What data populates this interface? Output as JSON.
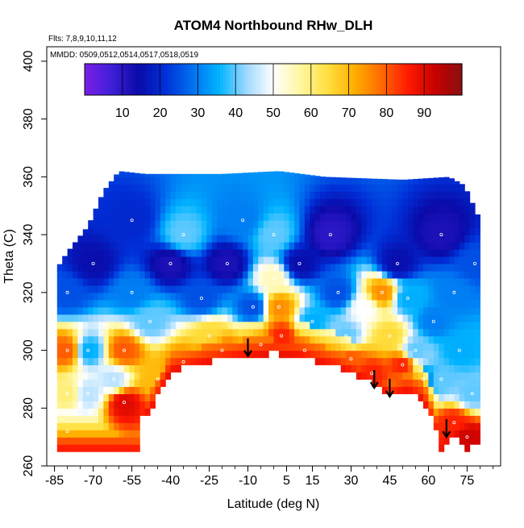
{
  "chart_data": {
    "type": "heatmap",
    "title": "ATOM4 Northbound RHw_DLH",
    "subtitle_flights": "Flts: 7,8,9,10,11,12",
    "subtitle_dates": "MMDD: 0509,0512,0514,0517,0518,0519",
    "xlabel": "Latitude (deg N)",
    "ylabel": "Theta (C)",
    "xlim": [
      -88,
      88
    ],
    "ylim": [
      260,
      405
    ],
    "x_ticks": [
      -85,
      -70,
      -55,
      -40,
      -25,
      -10,
      5,
      15,
      30,
      45,
      60,
      75
    ],
    "y_ticks": [
      260,
      280,
      300,
      320,
      340,
      360,
      380,
      400
    ],
    "colorbar": {
      "range": [
        0,
        100
      ],
      "ticks": [
        10,
        20,
        30,
        40,
        50,
        60,
        70,
        80,
        90
      ],
      "colors": [
        "#7a1fe6",
        "#3f1fd8",
        "#0a0aa8",
        "#0030d8",
        "#0070f0",
        "#00b4ff",
        "#9fd8ff",
        "#ffffff",
        "#fff7a0",
        "#ffe040",
        "#ffb000",
        "#ff6a00",
        "#ff1a00",
        "#c80000",
        "#8a1010"
      ]
    },
    "boundary_top": [
      {
        "lat": -85,
        "theta": 327
      },
      {
        "lat": -80,
        "theta": 334
      },
      {
        "lat": -72,
        "theta": 343
      },
      {
        "lat": -66,
        "theta": 355
      },
      {
        "lat": -60,
        "theta": 362
      },
      {
        "lat": -50,
        "theta": 361
      },
      {
        "lat": -20,
        "theta": 361
      },
      {
        "lat": 2,
        "theta": 362
      },
      {
        "lat": 20,
        "theta": 360
      },
      {
        "lat": 50,
        "theta": 359
      },
      {
        "lat": 68,
        "theta": 360
      },
      {
        "lat": 74,
        "theta": 357
      },
      {
        "lat": 79,
        "theta": 347
      },
      {
        "lat": 80,
        "theta": 340
      }
    ],
    "boundary_bottom": [
      {
        "lat": -84,
        "theta": 306
      },
      {
        "lat": -84,
        "theta": 265
      },
      {
        "lat": -53,
        "theta": 265
      },
      {
        "lat": -53,
        "theta": 276
      },
      {
        "lat": -48,
        "theta": 279
      },
      {
        "lat": -40,
        "theta": 293
      },
      {
        "lat": -25,
        "theta": 296
      },
      {
        "lat": -10,
        "theta": 298
      },
      {
        "lat": 0,
        "theta": 299
      },
      {
        "lat": 10,
        "theta": 298
      },
      {
        "lat": 25,
        "theta": 294
      },
      {
        "lat": 38,
        "theta": 289
      },
      {
        "lat": 45,
        "theta": 284
      },
      {
        "lat": 52,
        "theta": 286
      },
      {
        "lat": 58,
        "theta": 283
      },
      {
        "lat": 63,
        "theta": 272
      },
      {
        "lat": 65,
        "theta": 266
      },
      {
        "lat": 70,
        "theta": 271
      },
      {
        "lat": 75,
        "theta": 266
      },
      {
        "lat": 80,
        "theta": 268
      }
    ],
    "rh_samples": [
      {
        "lat": -80,
        "theta": 300,
        "rh": 80
      },
      {
        "lat": -80,
        "theta": 285,
        "rh": 60
      },
      {
        "lat": -80,
        "theta": 272,
        "rh": 40
      },
      {
        "lat": -80,
        "theta": 320,
        "rh": 25
      },
      {
        "lat": -72,
        "theta": 300,
        "rh": 35
      },
      {
        "lat": -72,
        "theta": 285,
        "rh": 45
      },
      {
        "lat": -70,
        "theta": 330,
        "rh": 15
      },
      {
        "lat": -62,
        "theta": 290,
        "rh": 45
      },
      {
        "lat": -58,
        "theta": 282,
        "rh": 90
      },
      {
        "lat": -58,
        "theta": 300,
        "rh": 80
      },
      {
        "lat": -55,
        "theta": 345,
        "rh": 20
      },
      {
        "lat": -55,
        "theta": 320,
        "rh": 30
      },
      {
        "lat": -48,
        "theta": 310,
        "rh": 40
      },
      {
        "lat": -45,
        "theta": 290,
        "rh": 70
      },
      {
        "lat": -40,
        "theta": 330,
        "rh": 12
      },
      {
        "lat": -35,
        "theta": 340,
        "rh": 40
      },
      {
        "lat": -35,
        "theta": 296,
        "rh": 75
      },
      {
        "lat": -28,
        "theta": 318,
        "rh": 25
      },
      {
        "lat": -25,
        "theta": 305,
        "rh": 65
      },
      {
        "lat": -20,
        "theta": 300,
        "rh": 78
      },
      {
        "lat": -18,
        "theta": 330,
        "rh": 12
      },
      {
        "lat": -12,
        "theta": 345,
        "rh": 30
      },
      {
        "lat": -8,
        "theta": 315,
        "rh": 25
      },
      {
        "lat": -5,
        "theta": 302,
        "rh": 70
      },
      {
        "lat": 0,
        "theta": 325,
        "rh": 55
      },
      {
        "lat": 2,
        "theta": 315,
        "rh": 75
      },
      {
        "lat": 3,
        "theta": 305,
        "rh": 85
      },
      {
        "lat": 0,
        "theta": 340,
        "rh": 40
      },
      {
        "lat": 10,
        "theta": 330,
        "rh": 15
      },
      {
        "lat": 15,
        "theta": 310,
        "rh": 35
      },
      {
        "lat": 12,
        "theta": 300,
        "rh": 80
      },
      {
        "lat": 22,
        "theta": 340,
        "rh": 10
      },
      {
        "lat": 25,
        "theta": 320,
        "rh": 25
      },
      {
        "lat": 28,
        "theta": 305,
        "rh": 40
      },
      {
        "lat": 30,
        "theta": 297,
        "rh": 80
      },
      {
        "lat": 35,
        "theta": 315,
        "rh": 50
      },
      {
        "lat": 38,
        "theta": 292,
        "rh": 85
      },
      {
        "lat": 42,
        "theta": 320,
        "rh": 75
      },
      {
        "lat": 45,
        "theta": 305,
        "rh": 65
      },
      {
        "lat": 48,
        "theta": 330,
        "rh": 15
      },
      {
        "lat": 50,
        "theta": 295,
        "rh": 85
      },
      {
        "lat": 52,
        "theta": 318,
        "rh": 35
      },
      {
        "lat": 55,
        "theta": 300,
        "rh": 40
      },
      {
        "lat": 58,
        "theta": 290,
        "rh": 30
      },
      {
        "lat": 62,
        "theta": 310,
        "rh": 30
      },
      {
        "lat": 65,
        "theta": 290,
        "rh": 40
      },
      {
        "lat": 65,
        "theta": 340,
        "rh": 12
      },
      {
        "lat": 70,
        "theta": 320,
        "rh": 30
      },
      {
        "lat": 70,
        "theta": 275,
        "rh": 85
      },
      {
        "lat": 72,
        "theta": 300,
        "rh": 35
      },
      {
        "lat": 75,
        "theta": 270,
        "rh": 92
      },
      {
        "lat": 77,
        "theta": 285,
        "rh": 40
      },
      {
        "lat": 78,
        "theta": 330,
        "rh": 25
      }
    ],
    "arrows": [
      {
        "lat": -10,
        "theta": 298
      },
      {
        "lat": 39,
        "theta": 287
      },
      {
        "lat": 45,
        "theta": 284
      },
      {
        "lat": 67,
        "theta": 270
      }
    ]
  }
}
